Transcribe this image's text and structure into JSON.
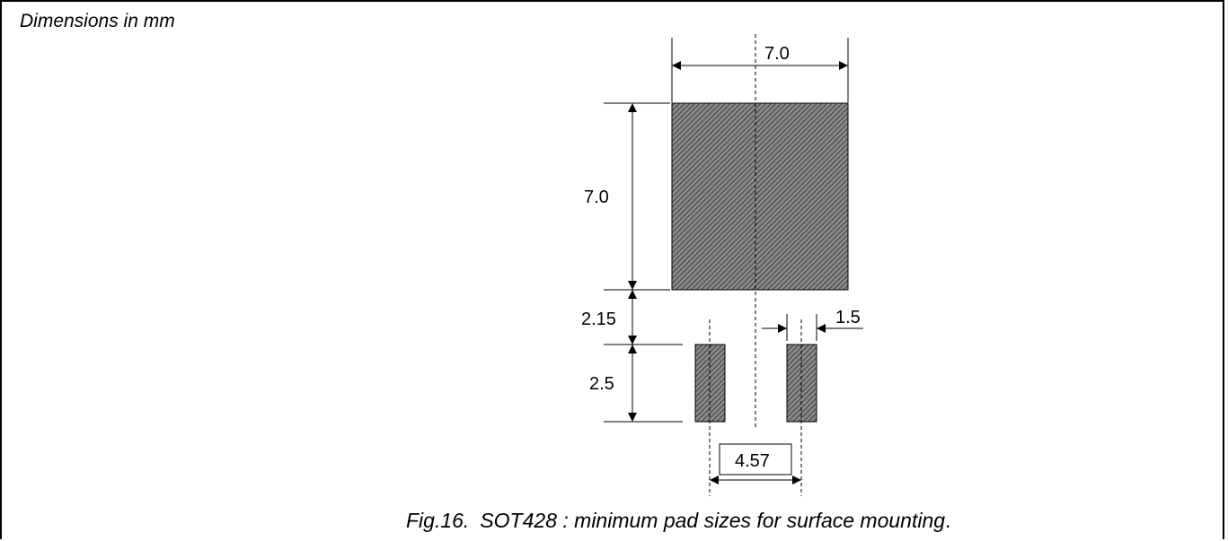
{
  "note": "Dimensions in mm",
  "labels": {
    "top_width": "7.0",
    "pad_height": "7.0",
    "gap": "2.15",
    "small_pad_height": "2.5",
    "small_pad_width": "1.5",
    "pitch": "4.57"
  },
  "caption": {
    "fig": "Fig.16.",
    "text": "SOT428 : minimum pad sizes for surface mounting",
    "end": "."
  },
  "colors": {
    "ink": "#000000",
    "pad_fill": "#6a6a6a"
  }
}
